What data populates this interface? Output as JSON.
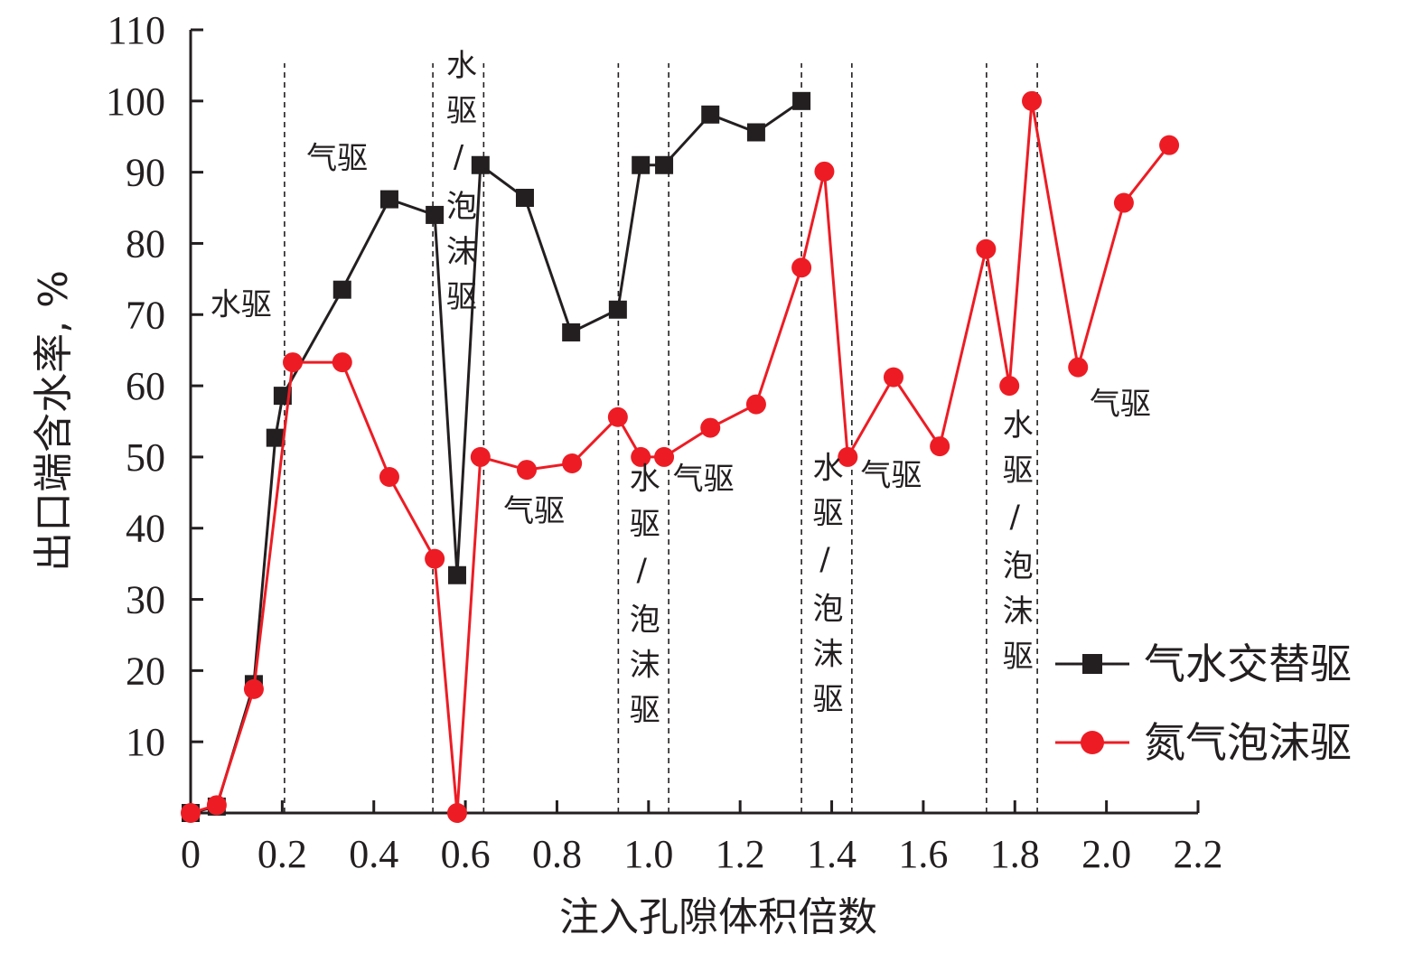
{
  "chart_data": {
    "type": "line",
    "title": "",
    "xlabel": "注入孔隙体积倍数",
    "ylabel": "出口端含水率, %",
    "xlim": [
      0,
      2.2
    ],
    "ylim": [
      0,
      110
    ],
    "xticks": [
      0,
      0.2,
      0.4,
      0.6,
      0.8,
      1.0,
      1.2,
      1.4,
      1.6,
      1.8,
      2.0,
      2.2
    ],
    "xtick_labels": [
      "0",
      "0.2",
      "0.4",
      "0.6",
      "0.8",
      "1.0",
      "1.2",
      "1.4",
      "1.6",
      "1.8",
      "2.0",
      "2.2"
    ],
    "yticks": [
      10,
      20,
      30,
      40,
      50,
      60,
      70,
      80,
      90,
      100,
      110
    ],
    "ytick_labels": [
      "10",
      "20",
      "30",
      "40",
      "50",
      "60",
      "70",
      "80",
      "90",
      "100",
      "110"
    ],
    "grid": false,
    "legend_position": "bottom-right",
    "series": [
      {
        "name": "气水交替驱",
        "color": "#231f20",
        "marker": "square",
        "x": [
          0,
          0.057,
          0.138,
          0.185,
          0.201,
          0.331,
          0.434,
          0.533,
          0.582,
          0.633,
          0.73,
          0.831,
          0.933,
          0.983,
          1.034,
          1.135,
          1.235,
          1.334
        ],
        "y": [
          0,
          0.9,
          18.1,
          52.7,
          58.6,
          73.5,
          86.2,
          84.0,
          33.4,
          91.0,
          86.4,
          67.5,
          70.7,
          91.0,
          91.0,
          98.1,
          95.6,
          100.0
        ]
      },
      {
        "name": "氮气泡沫驱",
        "color": "#ed1c24",
        "marker": "circle",
        "x": [
          0,
          0.057,
          0.138,
          0.223,
          0.331,
          0.434,
          0.533,
          0.582,
          0.633,
          0.734,
          0.833,
          0.933,
          0.983,
          1.034,
          1.135,
          1.235,
          1.334,
          1.384,
          1.435,
          1.535,
          1.636,
          1.737,
          1.788,
          1.837,
          1.938,
          2.038,
          2.137
        ],
        "y": [
          0,
          1.1,
          17.4,
          63.3,
          63.3,
          47.2,
          35.7,
          0,
          50.0,
          48.2,
          49.1,
          55.6,
          50.0,
          50.0,
          54.1,
          57.4,
          76.6,
          90.1,
          50.0,
          61.2,
          51.5,
          79.2,
          60.0,
          100.0,
          62.6,
          85.7,
          93.8
        ]
      }
    ],
    "vlines": [
      0.205,
      0.529,
      0.64,
      0.934,
      1.044,
      1.334,
      1.444,
      1.738,
      1.849
    ],
    "annotations": [
      {
        "text": "水驱",
        "x": 0.11,
        "y": 70,
        "vertical": false
      },
      {
        "text": "气驱",
        "x": 0.32,
        "y": 90.5,
        "vertical": false
      },
      {
        "text": "水驱/泡沫驱",
        "x": 0.585,
        "y": 103.5,
        "vertical": true
      },
      {
        "text": "气驱",
        "x": 0.75,
        "y": 41,
        "vertical": false
      },
      {
        "text": "水驱/泡沫驱",
        "x": 0.985,
        "y": 45.5,
        "vertical": true
      },
      {
        "text": "气驱",
        "x": 1.12,
        "y": 45.5,
        "vertical": false
      },
      {
        "text": "水驱/泡沫驱",
        "x": 1.385,
        "y": 47,
        "vertical": true
      },
      {
        "text": "气驱",
        "x": 1.53,
        "y": 46,
        "vertical": false
      },
      {
        "text": "水驱/泡沫驱",
        "x": 1.8,
        "y": 53,
        "vertical": true
      },
      {
        "text": "气驱",
        "x": 2.03,
        "y": 56,
        "vertical": false
      }
    ]
  }
}
